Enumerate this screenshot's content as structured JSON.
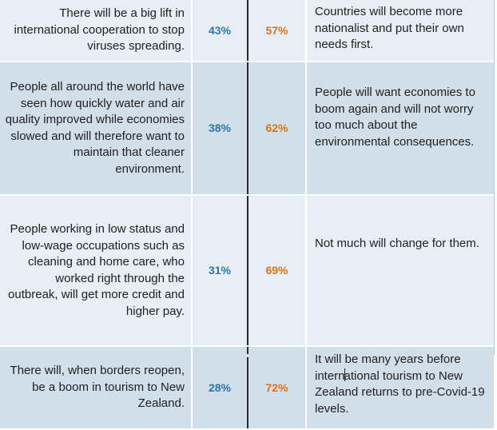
{
  "rows": [
    {
      "left": "There will be a big lift in international cooperation to stop viruses spreading.",
      "pct_left": "43%",
      "pct_right": "57%",
      "right": "Countries will become more nationalist and put their own needs first."
    },
    {
      "left": "People all around the world have seen how quickly water and air quality improved while economies slowed and will therefore want to maintain that cleaner environment.",
      "pct_left": "38%",
      "pct_right": "62%",
      "right": "People will want economies to boom again and will not worry too much about the environmental consequences."
    },
    {
      "left": "People working in low status and low-wage occupations such as cleaning and home care, who worked right through the outbreak, will get more credit and higher pay.",
      "pct_left": "31%",
      "pct_right": "69%",
      "right": "Not much will change for them."
    },
    {
      "left": "There will, when borders reopen, be a boom in tourism to New Zealand.",
      "pct_left": "28%",
      "pct_right": "72%",
      "right_before_cursor": "It will be many years before intern",
      "right_after_cursor": "ational tourism to New Zealand returns to pre-Covid-19 levels."
    }
  ],
  "colors": {
    "pct_left": "#2e75a6",
    "pct_right": "#d8731c",
    "row_light": "#e8eef5",
    "row_dark": "#d1dfeb"
  }
}
